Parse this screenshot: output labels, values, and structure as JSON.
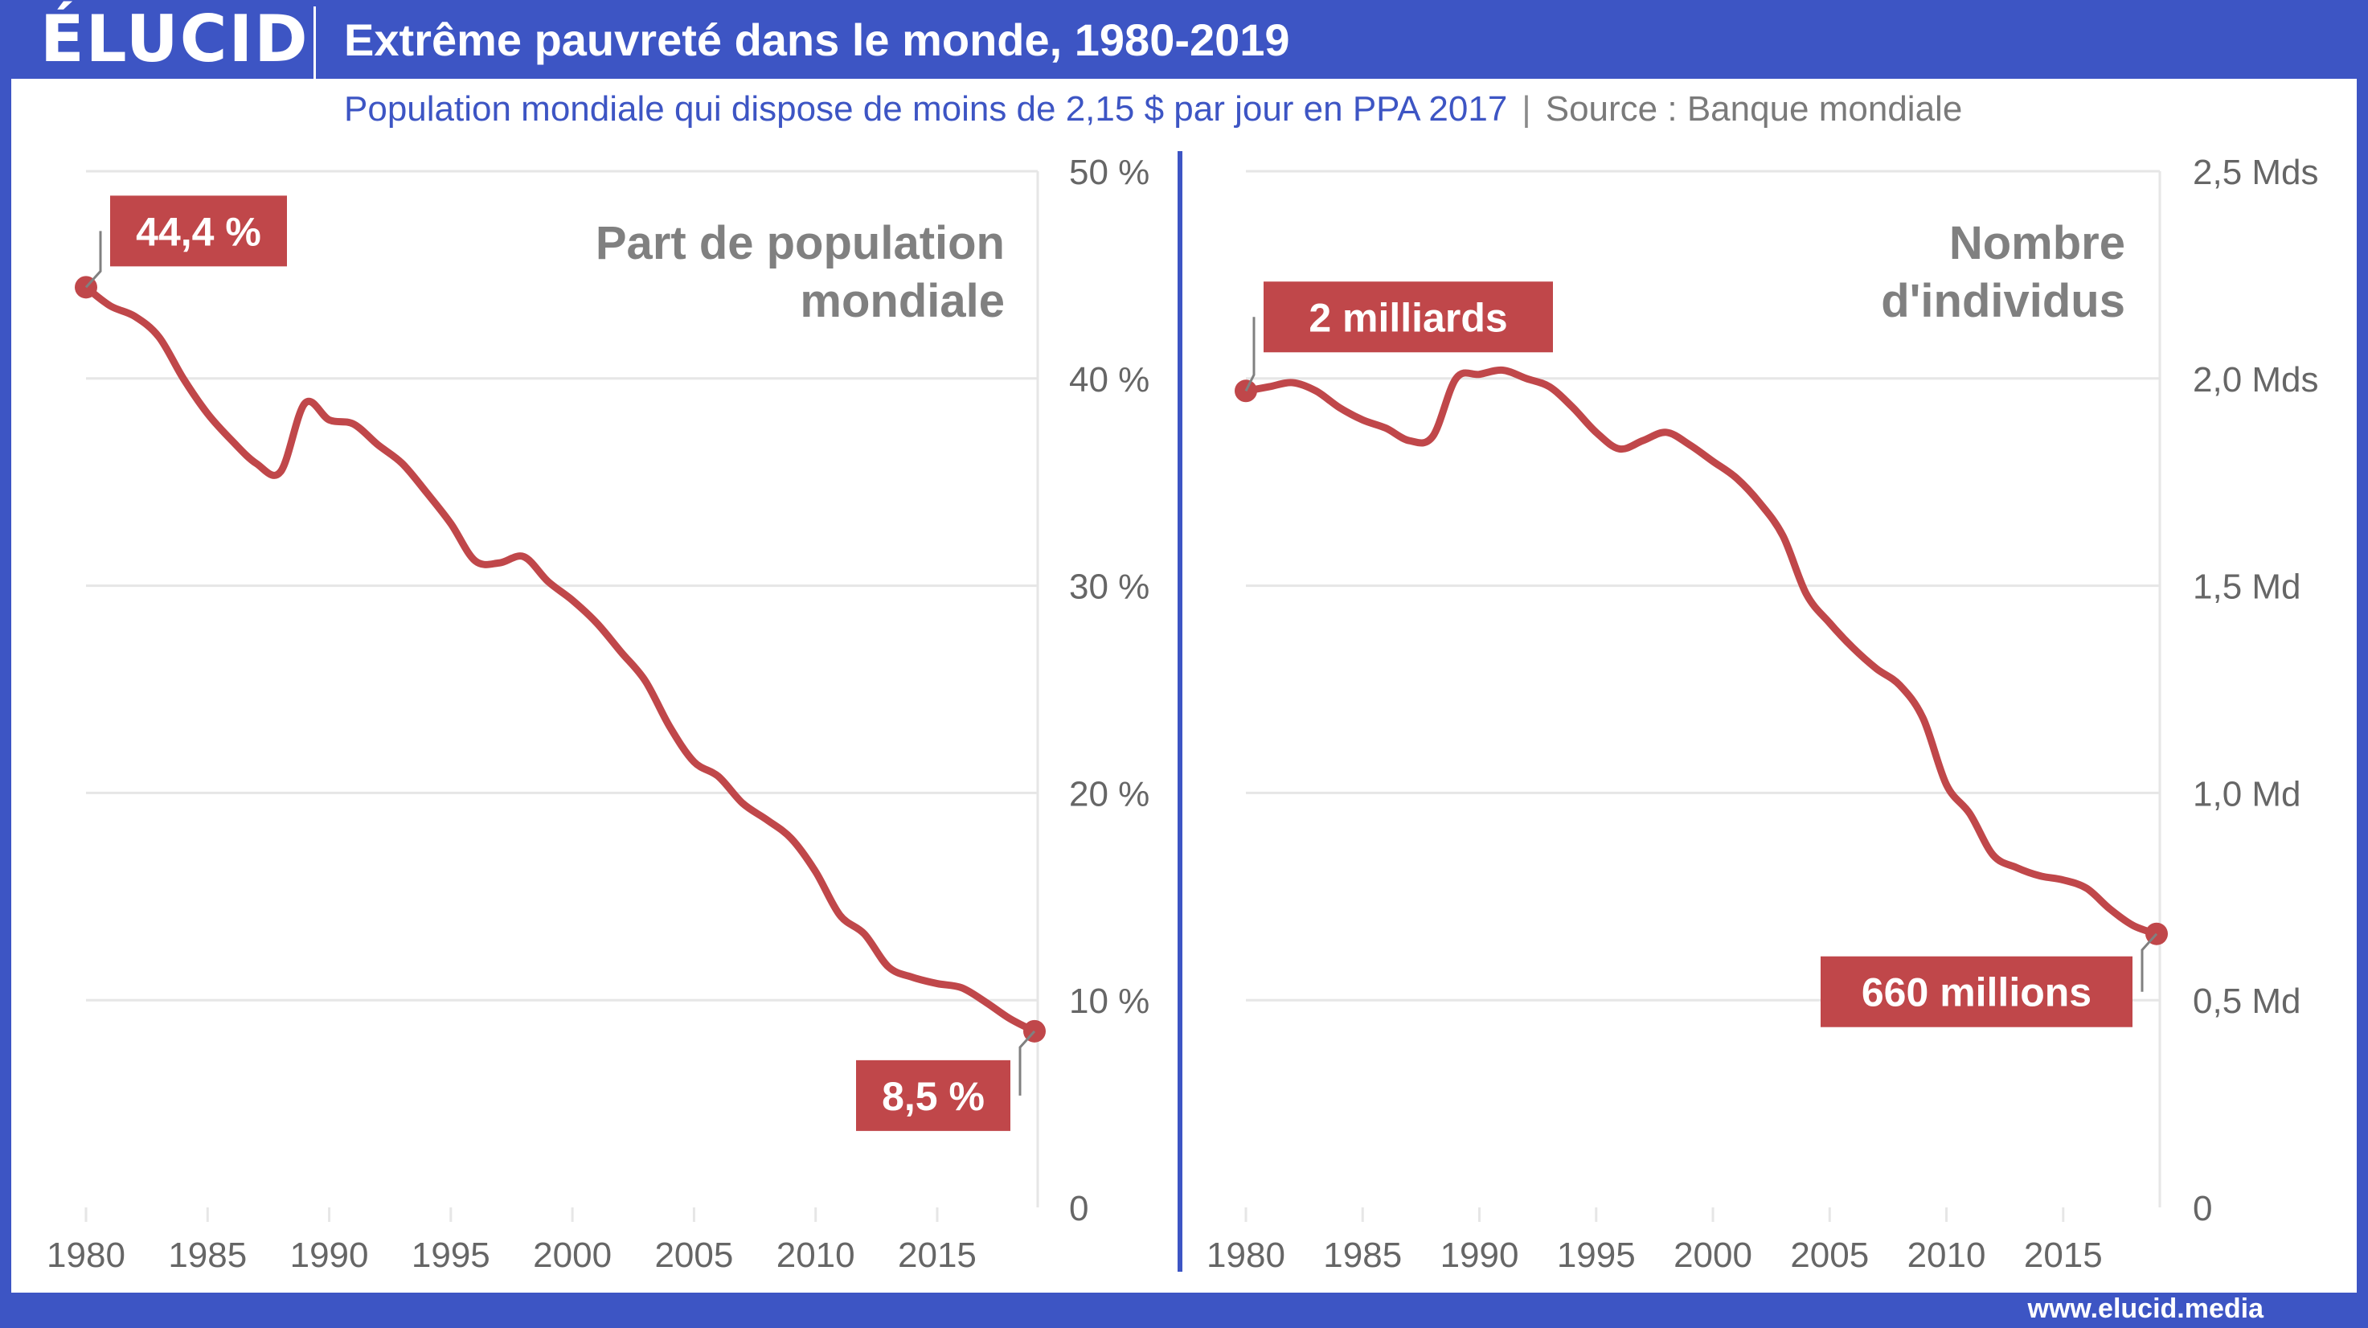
{
  "header": {
    "logo": "ÉLUCID",
    "title": "Extrême pauvreté dans le monde, 1980-2019"
  },
  "subtitle": {
    "description": "Population mondiale qui dispose de moins de 2,15 $ par jour en PPA 2017",
    "separator": "|",
    "source": "Source : Banque mondiale"
  },
  "footer": {
    "url": "www.elucid.media"
  },
  "colors": {
    "accent": "#3d55c4",
    "line": "#c0474a",
    "grid": "#e6e6e6",
    "label_box": "#c0474a"
  },
  "chart_data": [
    {
      "type": "line",
      "title_lines": [
        "Part de population",
        "mondiale"
      ],
      "x_ticks": [
        "1980",
        "1985",
        "1990",
        "1995",
        "2000",
        "2005",
        "2010",
        "2015"
      ],
      "y_ticks": [
        "0",
        "10 %",
        "20 %",
        "30 %",
        "40 %",
        "50 %"
      ],
      "ylim": [
        0,
        50
      ],
      "y_axis_side": "right",
      "series": [
        {
          "x": [
            1980,
            1981,
            1982,
            1983,
            1984,
            1985,
            1986,
            1987,
            1988,
            1989,
            1990,
            1991,
            1992,
            1993,
            1994,
            1995,
            1996,
            1997,
            1998,
            1999,
            2000,
            2001,
            2002,
            2003,
            2004,
            2005,
            2006,
            2007,
            2008,
            2009,
            2010,
            2011,
            2012,
            2013,
            2014,
            2015,
            2016,
            2017,
            2018,
            2019
          ],
          "values": [
            44.4,
            43.5,
            43.0,
            42.0,
            40.0,
            38.3,
            37.0,
            35.9,
            35.5,
            38.8,
            38.0,
            37.8,
            36.8,
            35.9,
            34.5,
            33.0,
            31.2,
            31.1,
            31.4,
            30.2,
            29.3,
            28.2,
            26.8,
            25.4,
            23.2,
            21.5,
            20.8,
            19.5,
            18.7,
            17.8,
            16.2,
            14.1,
            13.2,
            11.6,
            11.1,
            10.8,
            10.6,
            9.9,
            9.1,
            8.5
          ]
        }
      ],
      "callouts": {
        "start": "44,4 %",
        "end": "8,5 %"
      }
    },
    {
      "type": "line",
      "title_lines": [
        "Nombre",
        "d'individus"
      ],
      "x_ticks": [
        "1980",
        "1985",
        "1990",
        "1995",
        "2000",
        "2005",
        "2010",
        "2015"
      ],
      "y_ticks": [
        "0",
        "0,5 Md",
        "1,0 Md",
        "1,5 Md",
        "2,0 Mds",
        "2,5 Mds"
      ],
      "ylim": [
        0,
        2.5
      ],
      "y_axis_side": "right",
      "series": [
        {
          "x": [
            1980,
            1981,
            1982,
            1983,
            1984,
            1985,
            1986,
            1987,
            1988,
            1989,
            1990,
            1991,
            1992,
            1993,
            1994,
            1995,
            1996,
            1997,
            1998,
            1999,
            2000,
            2001,
            2002,
            2003,
            2004,
            2005,
            2006,
            2007,
            2008,
            2009,
            2010,
            2011,
            2012,
            2013,
            2014,
            2015,
            2016,
            2017,
            2018,
            2019
          ],
          "values": [
            1.97,
            1.98,
            1.99,
            1.97,
            1.93,
            1.9,
            1.88,
            1.85,
            1.86,
            2.0,
            2.01,
            2.02,
            2.0,
            1.98,
            1.93,
            1.87,
            1.83,
            1.85,
            1.87,
            1.84,
            1.8,
            1.76,
            1.7,
            1.62,
            1.48,
            1.41,
            1.35,
            1.3,
            1.26,
            1.18,
            1.02,
            0.95,
            0.85,
            0.82,
            0.8,
            0.79,
            0.77,
            0.72,
            0.68,
            0.66
          ]
        }
      ],
      "callouts": {
        "start": "2 milliards",
        "end": "660 millions"
      }
    }
  ]
}
